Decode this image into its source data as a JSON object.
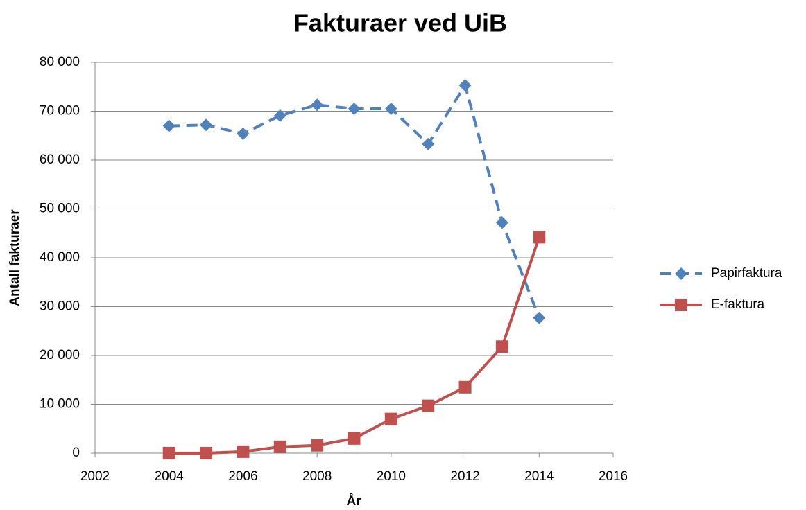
{
  "chart_data": {
    "type": "line",
    "title": "Fakturaer ved UiB",
    "x_label": "År",
    "y_label": "Antall fakturaer",
    "x": [
      2004,
      2005,
      2006,
      2007,
      2008,
      2009,
      2010,
      2011,
      2012,
      2013,
      2014
    ],
    "series": [
      {
        "name": "Papirfaktura",
        "color": "#4f81bd",
        "dashed": true,
        "marker": "diamond",
        "values": [
          67000,
          67200,
          65400,
          69100,
          71300,
          70500,
          70500,
          63300,
          75300,
          47200,
          27700
        ]
      },
      {
        "name": "E-faktura",
        "color": "#c0504d",
        "dashed": false,
        "marker": "square",
        "values": [
          0,
          0,
          300,
          1300,
          1600,
          3000,
          7000,
          9700,
          13500,
          21800,
          44200
        ]
      }
    ],
    "xlim": [
      2002,
      2016
    ],
    "xticks": [
      2002,
      2004,
      2006,
      2008,
      2010,
      2012,
      2014,
      2016
    ],
    "ylim": [
      0,
      80000
    ],
    "yticks": [
      0,
      {
        "value": 10000,
        "label": "10 000"
      },
      {
        "value": 20000,
        "label": "20 000"
      },
      {
        "value": 30000,
        "label": "30 000"
      },
      {
        "value": 40000,
        "label": "40 000"
      },
      {
        "value": 50000,
        "label": "50 000"
      },
      {
        "value": 60000,
        "label": "60 000"
      },
      {
        "value": 70000,
        "label": "70 000"
      },
      {
        "value": 80000,
        "label": "80 000"
      }
    ],
    "grid": true,
    "legend": "right"
  }
}
